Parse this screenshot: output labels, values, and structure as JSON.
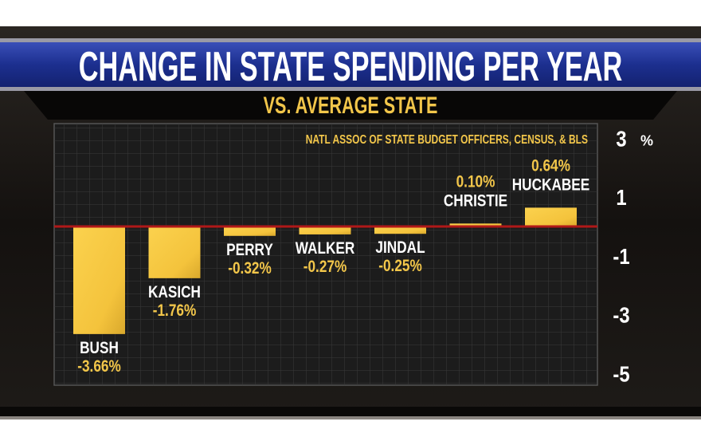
{
  "chart_data": {
    "type": "bar",
    "title": "CHANGE IN STATE SPENDING PER YEAR",
    "subtitle": "VS. AVERAGE STATE",
    "source": "NATL ASSOC OF STATE BUDGET OFFICERS, CENSUS, & BLS",
    "categories": [
      "BUSH",
      "KASICH",
      "PERRY",
      "WALKER",
      "JINDAL",
      "CHRISTIE",
      "HUCKABEE"
    ],
    "values": [
      -3.66,
      -1.76,
      -0.32,
      -0.27,
      -0.25,
      0.1,
      0.64
    ],
    "value_labels": [
      "-3.66%",
      "-1.76%",
      "-0.32%",
      "-0.27%",
      "-0.25%",
      "0.10%",
      "0.64%"
    ],
    "y_ticks": [
      3,
      1,
      -1,
      -3,
      -5
    ],
    "y_tick_labels": [
      "3",
      "1",
      "-1",
      "-3",
      "-5"
    ],
    "y_unit": "%",
    "ylim": [
      -5.4,
      3.5
    ],
    "grid": true,
    "colors": {
      "bar": "#f7c843",
      "baseline": "#b01818",
      "banner": "#1c2f8f",
      "label_value": "#f2c64a",
      "label_name": "#ffffff"
    }
  }
}
